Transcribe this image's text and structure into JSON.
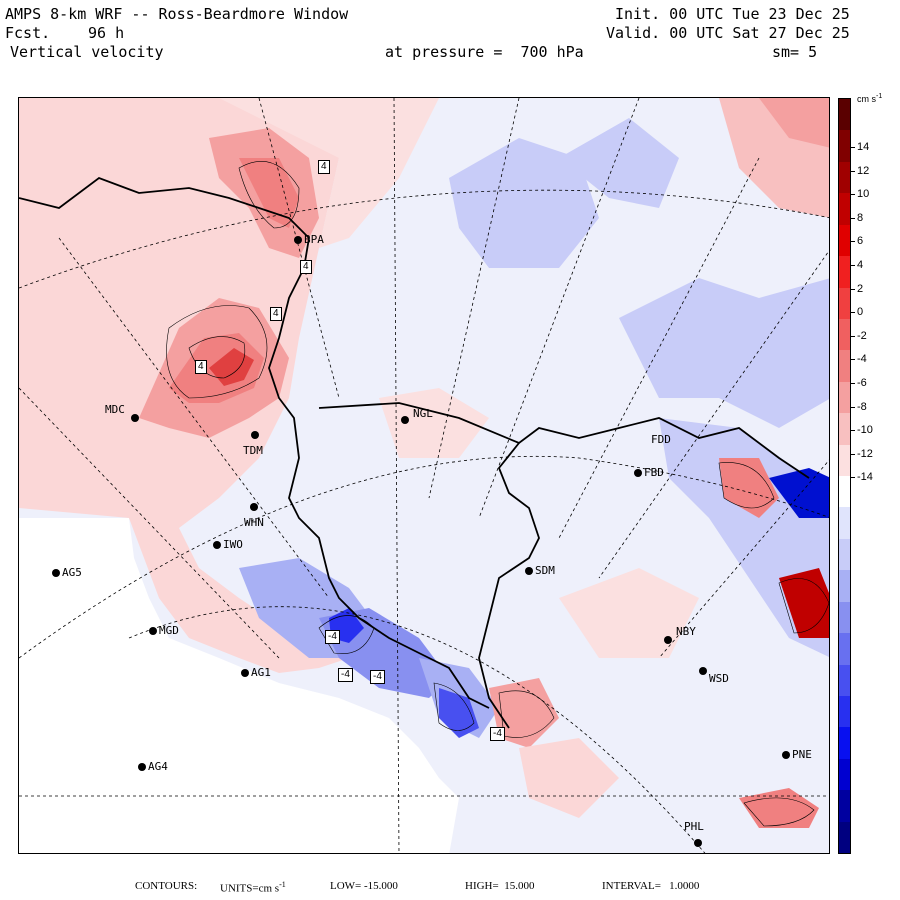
{
  "header": {
    "title": "AMPS 8-km WRF -- Ross-Beardmore Window",
    "forecast_label": "Fcst.",
    "forecast_hours": "96 h",
    "variable": "Vertical velocity",
    "init": "Init. 00 UTC Tue 23 Dec 25",
    "valid": "Valid. 00 UTC Sat 27 Dec 25",
    "pressure": "at pressure =  700 hPa",
    "smoothing": "sm= 5"
  },
  "colorbar": {
    "units": "cm s",
    "units_exp": "-1",
    "ticks": [
      "14",
      "12",
      "10",
      "8",
      "6",
      "4",
      "2",
      "0",
      "-2",
      "-4",
      "-6",
      "-8",
      "-10",
      "-12",
      "-14"
    ],
    "colors_top_to_bottom": [
      "#5a0000",
      "#800000",
      "#a00000",
      "#c00000",
      "#e00000",
      "#f02020",
      "#f04040",
      "#f06060",
      "#f08080",
      "#f4a0a0",
      "#f8c0c0",
      "#fce0e0",
      "#ffffff",
      "#e0e4fc",
      "#c8ccf8",
      "#a8b0f4",
      "#8890f0",
      "#6870f0",
      "#4850f0",
      "#2830f0",
      "#0810f0",
      "#0000d0",
      "#0000a0",
      "#000080"
    ]
  },
  "stations": [
    {
      "name": "BPA",
      "x": "",
      "y": ""
    },
    {
      "name": "MDC"
    },
    {
      "name": "TDM"
    },
    {
      "name": "NGL"
    },
    {
      "name": "FDD"
    },
    {
      "name": "FBD"
    },
    {
      "name": "WHN"
    },
    {
      "name": "IWO"
    },
    {
      "name": "AG5"
    },
    {
      "name": "SDM"
    },
    {
      "name": "MGD"
    },
    {
      "name": "NBY"
    },
    {
      "name": "AG1"
    },
    {
      "name": "WSD"
    },
    {
      "name": "AG4"
    },
    {
      "name": "PNE"
    },
    {
      "name": "PHL"
    }
  ],
  "contour_labels": [
    "4",
    "4",
    "4",
    "4",
    "-4",
    "-4",
    "-4",
    "-4"
  ],
  "footer": {
    "contours": "CONTOURS:",
    "units_label": "UNITS=cm s",
    "units_exp": "-1",
    "low": "LOW= -15.000",
    "high": "HIGH=  15.000",
    "interval": "INTERVAL=   1.0000"
  }
}
